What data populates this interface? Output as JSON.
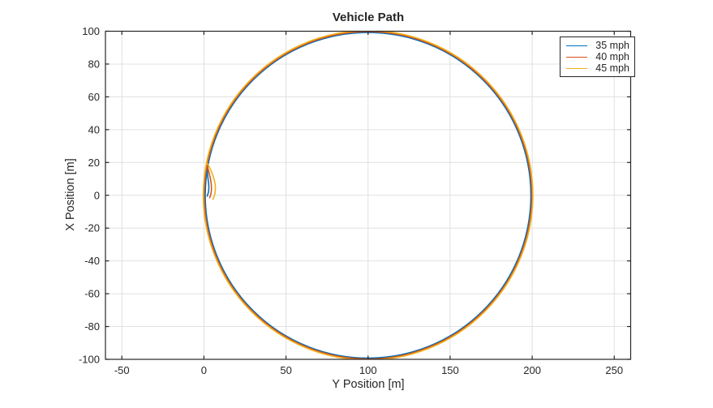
{
  "chart_data": {
    "type": "line",
    "title": "Vehicle Path",
    "xlabel": "Y Position [m]",
    "ylabel": "X Position [m]",
    "xlim": [
      -60,
      260
    ],
    "ylim": [
      -100,
      100
    ],
    "xticks": [
      -50,
      0,
      50,
      100,
      150,
      200,
      250
    ],
    "yticks": [
      -100,
      -80,
      -60,
      -40,
      -20,
      0,
      20,
      40,
      60,
      80,
      100
    ],
    "grid": true,
    "axis_equal": true,
    "legend": {
      "position": "northeast",
      "labels": [
        "35 mph",
        "40 mph",
        "45 mph"
      ]
    },
    "coordinate_note": "points are [Y Position, X Position] in meters; horizontal axis is Y Position, vertical axis is X Position",
    "series": [
      {
        "label": "35 mph",
        "color": "#0072BD",
        "circle": {
          "center": [
            100,
            0
          ],
          "radius": 99.2
        },
        "transient": [
          [
            2.0,
            -0.5
          ],
          [
            2.8,
            2
          ],
          [
            3.0,
            4.5
          ],
          [
            2.9,
            7
          ],
          [
            2.5,
            10
          ],
          [
            2.2,
            13
          ],
          [
            2.2,
            16.5
          ]
        ]
      },
      {
        "label": "40 mph",
        "color": "#D95319",
        "circle": {
          "center": [
            100,
            0
          ],
          "radius": 99.8
        },
        "transient": [
          [
            3.5,
            -1.5
          ],
          [
            4.3,
            1
          ],
          [
            4.6,
            3.5
          ],
          [
            4.5,
            6.5
          ],
          [
            4.0,
            10
          ],
          [
            3.2,
            13.5
          ],
          [
            2.4,
            16.5
          ],
          [
            1.8,
            18
          ]
        ]
      },
      {
        "label": "45 mph",
        "color": "#EDB120",
        "circle": {
          "center": [
            100,
            0
          ],
          "radius": 100.4
        },
        "transient": [
          [
            5.5,
            -2.5
          ],
          [
            6.6,
            0.5
          ],
          [
            7.0,
            3.5
          ],
          [
            6.9,
            6.5
          ],
          [
            6.3,
            9.5
          ],
          [
            5.3,
            12.5
          ],
          [
            4.1,
            15.5
          ],
          [
            2.9,
            18
          ],
          [
            1.6,
            20
          ]
        ]
      }
    ],
    "colors": {
      "background": "#FFFFFF",
      "axes_box": "#262626",
      "grid": "#E0E0E0",
      "text": "#262626"
    }
  }
}
